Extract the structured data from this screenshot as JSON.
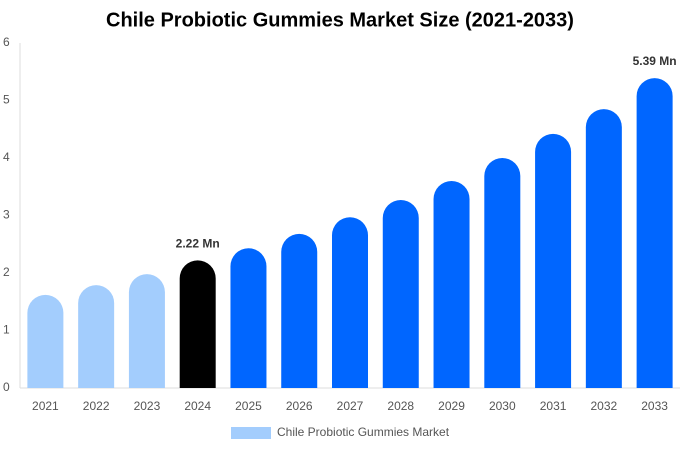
{
  "chart_data": {
    "type": "bar",
    "title": "Chile Probiotic Gummies Market Size (2021-2033)",
    "categories": [
      "2021",
      "2022",
      "2023",
      "2024",
      "2025",
      "2026",
      "2027",
      "2028",
      "2029",
      "2030",
      "2031",
      "2032",
      "2033"
    ],
    "series": [
      {
        "name": "Chile Probiotic Gummies Market",
        "color": "#a3cdfd",
        "values": [
          1.62,
          1.79,
          1.98,
          2.22,
          2.43,
          2.68,
          2.97,
          3.27,
          3.6,
          4.0,
          4.42,
          4.85,
          5.39
        ],
        "colors": [
          "#a3cdfd",
          "#a3cdfd",
          "#a3cdfd",
          "#000000",
          "#0066ff",
          "#0066ff",
          "#0066ff",
          "#0066ff",
          "#0066ff",
          "#0066ff",
          "#0066ff",
          "#0066ff",
          "#0066ff"
        ],
        "value_labels": [
          null,
          null,
          null,
          "2.22 Mn",
          null,
          null,
          null,
          null,
          null,
          null,
          null,
          null,
          "5.39 Mn"
        ]
      }
    ],
    "ylim": [
      0,
      6
    ],
    "yticks": [
      0,
      1,
      2,
      3,
      4,
      5,
      6
    ],
    "grid": false
  }
}
